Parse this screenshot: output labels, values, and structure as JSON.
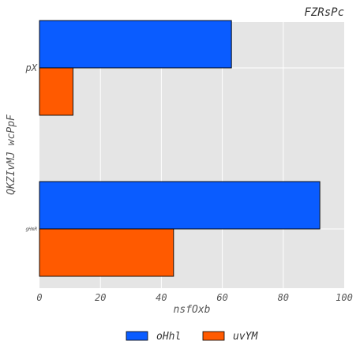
{
  "chart_data": {
    "type": "bar",
    "orientation": "horizontal",
    "title": "FZRsPc",
    "xlabel": "nsfOxb",
    "ylabel": "QKZIvMJ wcPpF",
    "categories": [
      "pX",
      "gHmR"
    ],
    "series": [
      {
        "name": "oHhl",
        "color": "#0a5cff",
        "values": [
          63,
          92
        ]
      },
      {
        "name": "uvYM",
        "color": "#ff5a00",
        "values": [
          11,
          44
        ]
      }
    ],
    "xlim": [
      0,
      100
    ],
    "xticks": [
      0,
      20,
      40,
      60,
      80,
      100
    ],
    "grid": true,
    "legend_position": "bottom-center"
  }
}
